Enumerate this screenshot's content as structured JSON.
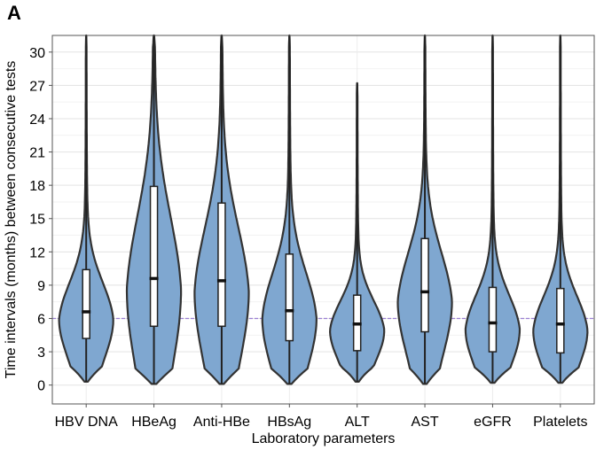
{
  "panel_label": "A",
  "chart_data": {
    "type": "violin",
    "xlabel": "Laboratory parameters",
    "ylabel": "Time intervals (months) between consecutive tests",
    "ylim": [
      -1.7,
      31.5
    ],
    "yticks": [
      0,
      3,
      6,
      9,
      12,
      15,
      18,
      21,
      24,
      27,
      30
    ],
    "grid": true,
    "reference_line": {
      "y": 6,
      "style": "dashed",
      "color": "#9b7fd4"
    },
    "fill_color": "#7fa7d0",
    "categories": [
      "HBV DNA",
      "HBeAg",
      "Anti-HBe",
      "HBsAg",
      "ALT",
      "AST",
      "eGFR",
      "Platelets"
    ],
    "series": [
      {
        "category": "HBV DNA",
        "min": 0.3,
        "q1": 4.2,
        "median": 6.6,
        "q3": 10.4,
        "whisker_high": 31.5
      },
      {
        "category": "HBeAg",
        "min": 0.1,
        "q1": 5.3,
        "median": 9.6,
        "q3": 17.9,
        "whisker_high": 31.5
      },
      {
        "category": "Anti-HBe",
        "min": 0.1,
        "q1": 5.3,
        "median": 9.4,
        "q3": 16.4,
        "whisker_high": 31.5
      },
      {
        "category": "HBsAg",
        "min": 0.1,
        "q1": 4.0,
        "median": 6.7,
        "q3": 11.8,
        "whisker_high": 31.5
      },
      {
        "category": "ALT",
        "min": 0.3,
        "q1": 3.1,
        "median": 5.5,
        "q3": 8.1,
        "whisker_high": 27.2
      },
      {
        "category": "AST",
        "min": 0.1,
        "q1": 4.8,
        "median": 8.4,
        "q3": 13.2,
        "whisker_high": 31.5
      },
      {
        "category": "eGFR",
        "min": 0.2,
        "q1": 3.0,
        "median": 5.6,
        "q3": 8.8,
        "whisker_high": 31.5
      },
      {
        "category": "Platelets",
        "min": 0.2,
        "q1": 2.9,
        "median": 5.5,
        "q3": 8.7,
        "whisker_high": 31.5
      }
    ]
  }
}
